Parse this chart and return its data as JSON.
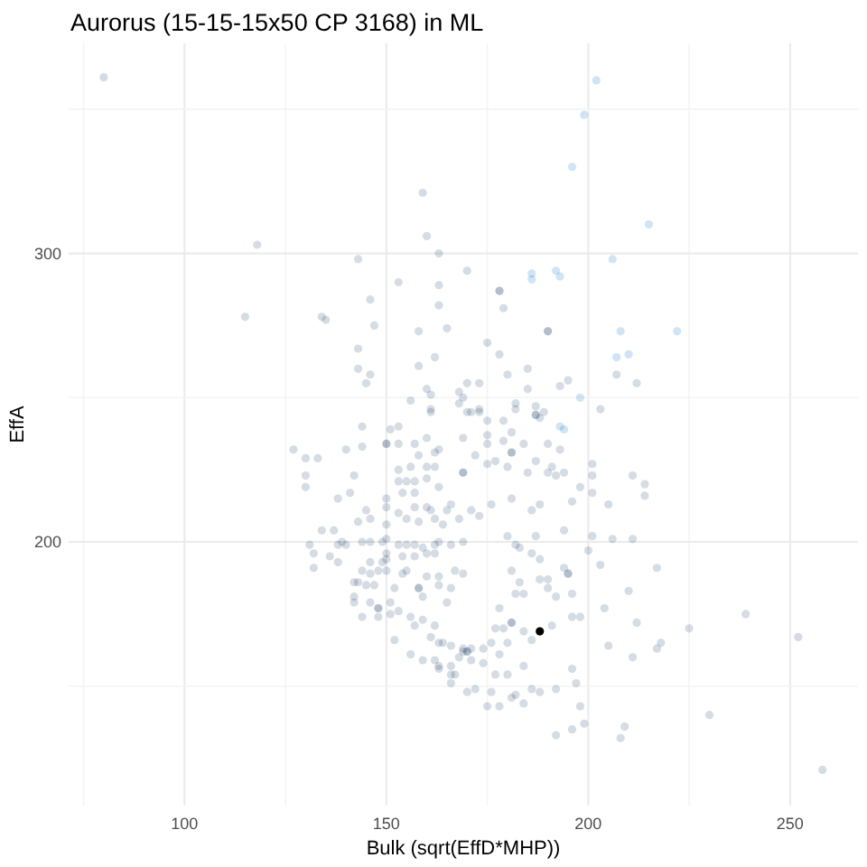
{
  "chart_data": {
    "type": "scatter",
    "title": "Aurorus (15-15-15x50 CP 3168) in ML",
    "xlabel": "Bulk (sqrt(EffD*MHP))",
    "ylabel": "EffA",
    "xlim": [
      71.3,
      266.8
    ],
    "ylim": [
      108.6,
      372.8
    ],
    "xticks": [
      {
        "value": 75,
        "label": null
      },
      100,
      {
        "value": 125,
        "label": null
      },
      150,
      {
        "value": 175,
        "label": null
      },
      200,
      {
        "value": 225,
        "label": null
      },
      250
    ],
    "yticks": [
      {
        "value": 150,
        "label": null
      },
      200,
      {
        "value": 250,
        "label": null
      },
      300,
      {
        "value": 350,
        "label": null
      }
    ],
    "grid": true,
    "marker": "circle",
    "series": [
      {
        "color": "#d5dce4",
        "x": [
          80,
          118,
          115,
          134,
          135,
          143,
          159,
          160,
          163,
          170,
          153,
          163,
          146,
          163,
          147,
          158,
          165,
          143,
          143,
          162,
          158,
          146,
          145,
          160,
          161,
          170,
          168,
          169,
          168,
          156,
          161,
          144,
          151,
          153,
          170,
          178,
          179,
          190,
          175,
          178,
          180,
          185,
          195,
          193,
          185,
          173,
          203,
          182,
          182,
          187,
          189,
          187,
          171,
          173,
          175,
          179,
          181,
          212,
          207,
          127,
          130,
          133,
          130,
          130,
          140,
          144,
          150,
          153,
          157,
          160,
          161,
          158,
          162,
          142,
          138,
          141,
          153,
          156,
          160,
          162,
          169,
          153,
          155,
          157,
          160,
          163,
          154,
          157,
          145,
          146,
          143,
          150,
          150,
          150,
          153,
          155,
          157,
          158,
          160,
          161,
          165,
          166,
          162,
          164,
          168,
          134,
          137,
          139,
          138,
          140,
          132,
          131,
          136,
          138,
          132,
          144,
          146,
          149,
          150,
          153,
          155,
          157,
          159,
          162,
          163,
          166,
          169,
          146,
          149,
          150,
          150,
          154,
          157,
          160,
          162,
          144,
          146,
          148,
          150,
          143,
          145,
          147,
          142,
          142,
          146,
          148,
          151,
          153,
          152,
          154,
          155,
          158,
          159,
          163,
          165,
          166,
          160,
          163,
          167,
          169,
          144,
          148,
          151,
          156,
          159,
          157,
          162,
          152,
          161,
          164,
          166,
          169,
          156,
          159,
          162,
          163,
          166,
          166,
          166,
          170,
          163,
          168,
          169,
          173,
          188,
          169,
          175,
          175,
          179,
          184,
          190,
          193,
          163,
          172,
          181,
          177,
          180,
          175,
          201,
          201,
          201,
          211,
          214,
          214,
          185,
          187,
          191,
          190,
          192,
          194,
          198,
          205,
          206,
          211,
          201,
          200,
          203,
          217,
          210,
          204,
          212,
          225,
          239,
          252,
          205,
          211,
          217,
          218,
          230,
          208,
          209,
          258,
          192,
          196,
          199,
          198,
          196,
          197,
          196,
          198,
          195,
          196,
          194,
          192,
          190,
          188,
          190,
          183,
          184,
          182,
          188,
          186,
          183,
          181,
          191,
          186,
          184,
          181,
          178,
          179,
          177,
          180,
          176,
          178,
          174,
          170,
          171,
          163,
          184,
          180,
          177,
          174,
          171,
          167,
          172,
          176,
          181,
          182,
          186,
          188,
          192,
          175,
          178,
          184,
          180,
          182,
          187,
          171,
          173,
          176,
          181,
          186,
          188,
          194,
          196,
          178,
          190,
          150,
          169,
          142,
          148,
          158,
          181,
          195,
          187,
          170,
          181
        ],
        "values": [
          361,
          303,
          278,
          278,
          277,
          298,
          321,
          306,
          300,
          294,
          290,
          289,
          284,
          282,
          275,
          273,
          274,
          267,
          260,
          264,
          261,
          258,
          255,
          253,
          251,
          255,
          252,
          250,
          248,
          249,
          245,
          240,
          239,
          240,
          245,
          287,
          281,
          273,
          269,
          265,
          258,
          260,
          256,
          254,
          253,
          255,
          246,
          248,
          246,
          247,
          245,
          244,
          245,
          245,
          242,
          242,
          238,
          255,
          258,
          232,
          229,
          229,
          223,
          219,
          232,
          233,
          234,
          234,
          234,
          236,
          246,
          230,
          231,
          223,
          215,
          217,
          225,
          226,
          226,
          226,
          224,
          221,
          221,
          221,
          222,
          219,
          217,
          217,
          211,
          208,
          207,
          215,
          212,
          206,
          210,
          208,
          212,
          207,
          212,
          211,
          211,
          213,
          208,
          206,
          208,
          204,
          204,
          200,
          199,
          199,
          196,
          199,
          195,
          193,
          191,
          200,
          200,
          200,
          201,
          199,
          199,
          199,
          198,
          199,
          200,
          199,
          200,
          193,
          193,
          194,
          196,
          195,
          195,
          196,
          196,
          190,
          189,
          190,
          190,
          186,
          185,
          185,
          181,
          179,
          179,
          177,
          179,
          176,
          184,
          189,
          190,
          184,
          181,
          185,
          179,
          184,
          188,
          188,
          190,
          189,
          174,
          174,
          175,
          174,
          173,
          171,
          171,
          166,
          167,
          165,
          164,
          163,
          161,
          159,
          159,
          157,
          157,
          154,
          151,
          148,
          156,
          160,
          162,
          246,
          243,
          236,
          237,
          234,
          235,
          234,
          234,
          232,
          232,
          230,
          231,
          228,
          226,
          227,
          227,
          223,
          217,
          223,
          220,
          216,
          224,
          228,
          226,
          224,
          223,
          224,
          219,
          213,
          201,
          201,
          202,
          197,
          192,
          191,
          183,
          177,
          172,
          170,
          175,
          167,
          164,
          160,
          163,
          165,
          140,
          132,
          136,
          121,
          133,
          135,
          137,
          143,
          156,
          151,
          174,
          174,
          189,
          182,
          191,
          181,
          184,
          187,
          187,
          186,
          182,
          182,
          194,
          196,
          198,
          190,
          171,
          166,
          169,
          172,
          177,
          170,
          170,
          165,
          165,
          161,
          163,
          162,
          163,
          165,
          157,
          154,
          154,
          158,
          159,
          154,
          149,
          148,
          146,
          147,
          149,
          148,
          149,
          143,
          143,
          144,
          202,
          199,
          202,
          211,
          209,
          213,
          215,
          211,
          213,
          204,
          214,
          287,
          273,
          234,
          224,
          186,
          177,
          184,
          231,
          189,
          244,
          162,
          172
        ]
      },
      {
        "color": "#d0e4f5",
        "x": [
          202,
          199,
          196,
          215,
          206,
          186,
          186,
          192,
          193,
          208,
          222,
          207,
          210,
          198,
          193,
          194
        ],
        "values": [
          360,
          348,
          330,
          310,
          298,
          293,
          291,
          294,
          292,
          273,
          273,
          264,
          265,
          250,
          240,
          239
        ]
      },
      {
        "color": "#000000",
        "x": [
          188
        ],
        "values": [
          169
        ]
      }
    ]
  }
}
